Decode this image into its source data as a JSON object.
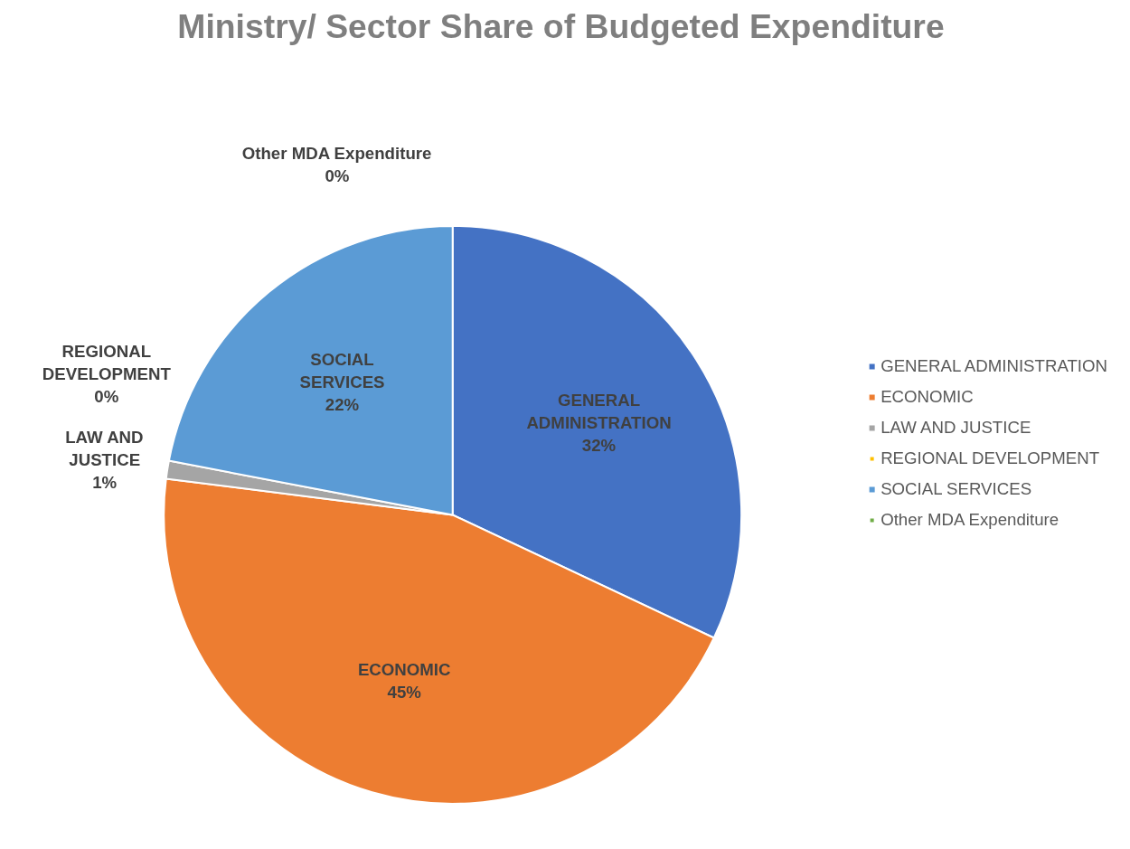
{
  "chart_data": {
    "type": "pie",
    "title": "Ministry/ Sector Share of Budgeted Expenditure",
    "categories": [
      "GENERAL ADMINISTRATION",
      "ECONOMIC",
      "LAW AND JUSTICE",
      "REGIONAL DEVELOPMENT",
      "SOCIAL SERVICES",
      "Other MDA Expenditure"
    ],
    "values": [
      32,
      45,
      1,
      0,
      22,
      0
    ],
    "colors": [
      "#4472c4",
      "#ed7d31",
      "#a5a5a5",
      "#ffc000",
      "#5b9bd5",
      "#70ad47"
    ],
    "value_labels": [
      "32%",
      "45%",
      "1%",
      "0%",
      "22%",
      "0%"
    ],
    "legend": "right"
  }
}
